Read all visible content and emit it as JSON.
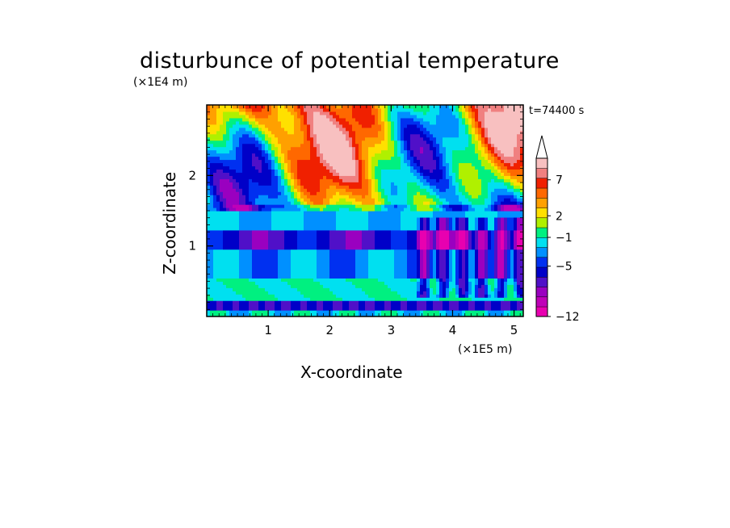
{
  "chart_data": {
    "type": "heatmap",
    "title": "disturbunce of potential temperature",
    "xlabel": "X-coordinate",
    "ylabel": "Z-coordinate",
    "x_unit": "(×1E5 m)",
    "y_unit": "(×1E4 m)",
    "time_label": "t=74400 s",
    "x_ticks": [
      1,
      2,
      3,
      4,
      5
    ],
    "y_ticks": [
      1,
      2
    ],
    "xlim": [
      0,
      5.15
    ],
    "ylim": [
      0,
      3.0
    ],
    "grid": false,
    "colorbar": {
      "levels": [
        -12,
        -11,
        -10,
        -9,
        -8,
        -7,
        -6,
        -5,
        -4,
        -3,
        -2,
        -1,
        0,
        1,
        2,
        3,
        4,
        5,
        6,
        7,
        8,
        9,
        10
      ],
      "labeled_levels": [
        -12,
        -5,
        -1,
        2,
        7
      ],
      "tick_labels": [
        "7",
        "2",
        "−1",
        "−5",
        "−12"
      ],
      "colors": [
        "#e800b0",
        "#c000b8",
        "#9a00c0",
        "#5010c8",
        "#0000c8",
        "#0030f0",
        "#0090ff",
        "#00e0f0",
        "#00f080",
        "#b0f000",
        "#ffe000",
        "#ffa000",
        "#ff6800",
        "#f02000",
        "#f08080",
        "#f8c0c0"
      ],
      "extend": "max"
    },
    "field_description": "banded structure: near-surface blue/green layers, a deep blue band near z=1.0–1.2, green/cyan around 1.3–1.6, yellow/orange/red tilted wave bands in the upper half"
  },
  "icons": {
    "colorbar_arrow": "triangle-up-icon"
  }
}
